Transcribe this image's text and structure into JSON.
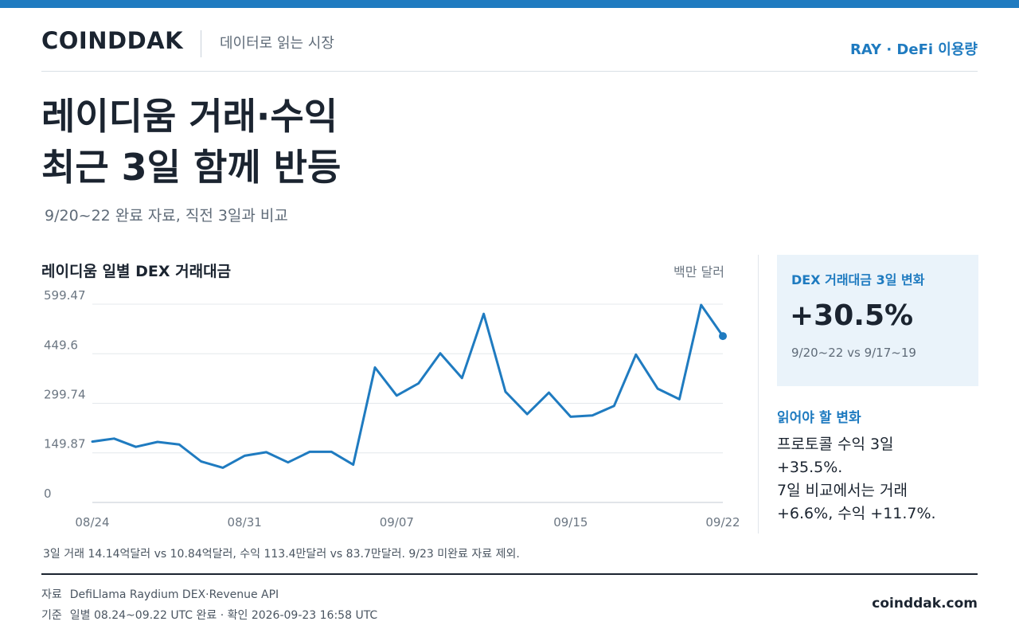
{
  "header": {
    "brand": "COINDDAK",
    "tagline": "데이터로 읽는 시장",
    "topic": "RAY · DeFi 이용량"
  },
  "headline": {
    "line1": "레이디움 거래·수익",
    "line2": "최근 3일 함께 반등"
  },
  "subhead": "9/20~22 완료 자료, 직전 3일과 비교",
  "chart_data": {
    "type": "line",
    "title": "레이디움 일별 DEX 거래대금",
    "unit": "백만 달러",
    "yticks": [
      "599.47",
      "449.6",
      "299.74",
      "149.87",
      "0"
    ],
    "ylim": [
      0,
      599.47
    ],
    "xticks": [
      {
        "label": "08/24",
        "index": 0
      },
      {
        "label": "08/31",
        "index": 7
      },
      {
        "label": "09/07",
        "index": 14
      },
      {
        "label": "09/15",
        "index": 22
      },
      {
        "label": "09/22",
        "index": 29
      }
    ],
    "grid": true,
    "series": [
      {
        "color": "#1f7bc0",
        "values": [
          184,
          193,
          168,
          183,
          175,
          124,
          105,
          141,
          152,
          121,
          153,
          153,
          114,
          408,
          323,
          360,
          451,
          376,
          570,
          335,
          267,
          332,
          259,
          263,
          292,
          447,
          344,
          312,
          597,
          503
        ]
      }
    ],
    "note": "3일 거래 14.14억달러 vs 10.84억달러, 수익 113.4만달러 vs 83.7만달러. 9/23 미완료 자료 제외."
  },
  "kpi": {
    "label": "DEX 거래대금 3일 변화",
    "value": "+30.5%",
    "period": "9/20~22 vs 9/17~19"
  },
  "changes": {
    "label": "읽어야 할 변화",
    "lines": [
      "프로토콜 수익 3일",
      "+35.5%.",
      "7일 비교에서는 거래",
      "+6.6%, 수익 +11.7%."
    ]
  },
  "footer": {
    "source_key": "자료",
    "source_value": "DefiLlama Raydium DEX·Revenue API",
    "basis_key": "기준",
    "basis_value": "일별 08.24~09.22 UTC 완료 · 확인 2026-09-23 16:58 UTC",
    "site": "coinddak.com"
  }
}
